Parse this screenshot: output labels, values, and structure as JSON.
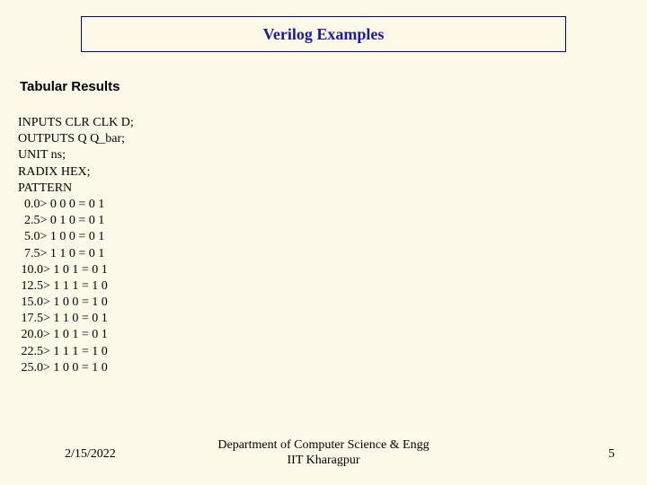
{
  "title": "Verilog Examples",
  "subtitle": "Tabular Results",
  "code": {
    "line1": "INPUTS CLR CLK D;",
    "line2": "OUTPUTS Q Q_bar;",
    "line3": "UNIT ns;",
    "line4": "RADIX HEX;",
    "line5": "PATTERN",
    "p0": "  0.0> 0 0 0 = 0 1",
    "p1": "  2.5> 0 1 0 = 0 1",
    "p2": "  5.0> 1 0 0 = 0 1",
    "p3": "  7.5> 1 1 0 = 0 1",
    "p4": " 10.0> 1 0 1 = 0 1",
    "p5": " 12.5> 1 1 1 = 1 0",
    "p6": " 15.0> 1 0 0 = 1 0",
    "p7": " 17.5> 1 1 0 = 0 1",
    "p8": " 20.0> 1 0 1 = 0 1",
    "p9": " 22.5> 1 1 1 = 1 0",
    "p10": " 25.0> 1 0 0 = 1 0"
  },
  "footer": {
    "date": "2/15/2022",
    "dept_line1": "Department of Computer Science & Engg",
    "dept_line2": "IIT Kharagpur",
    "page": "5"
  },
  "colors": {
    "background": "#fdf9e8",
    "title_border": "#000080",
    "title_text": "#1a1a9a",
    "body_text": "#000000"
  }
}
